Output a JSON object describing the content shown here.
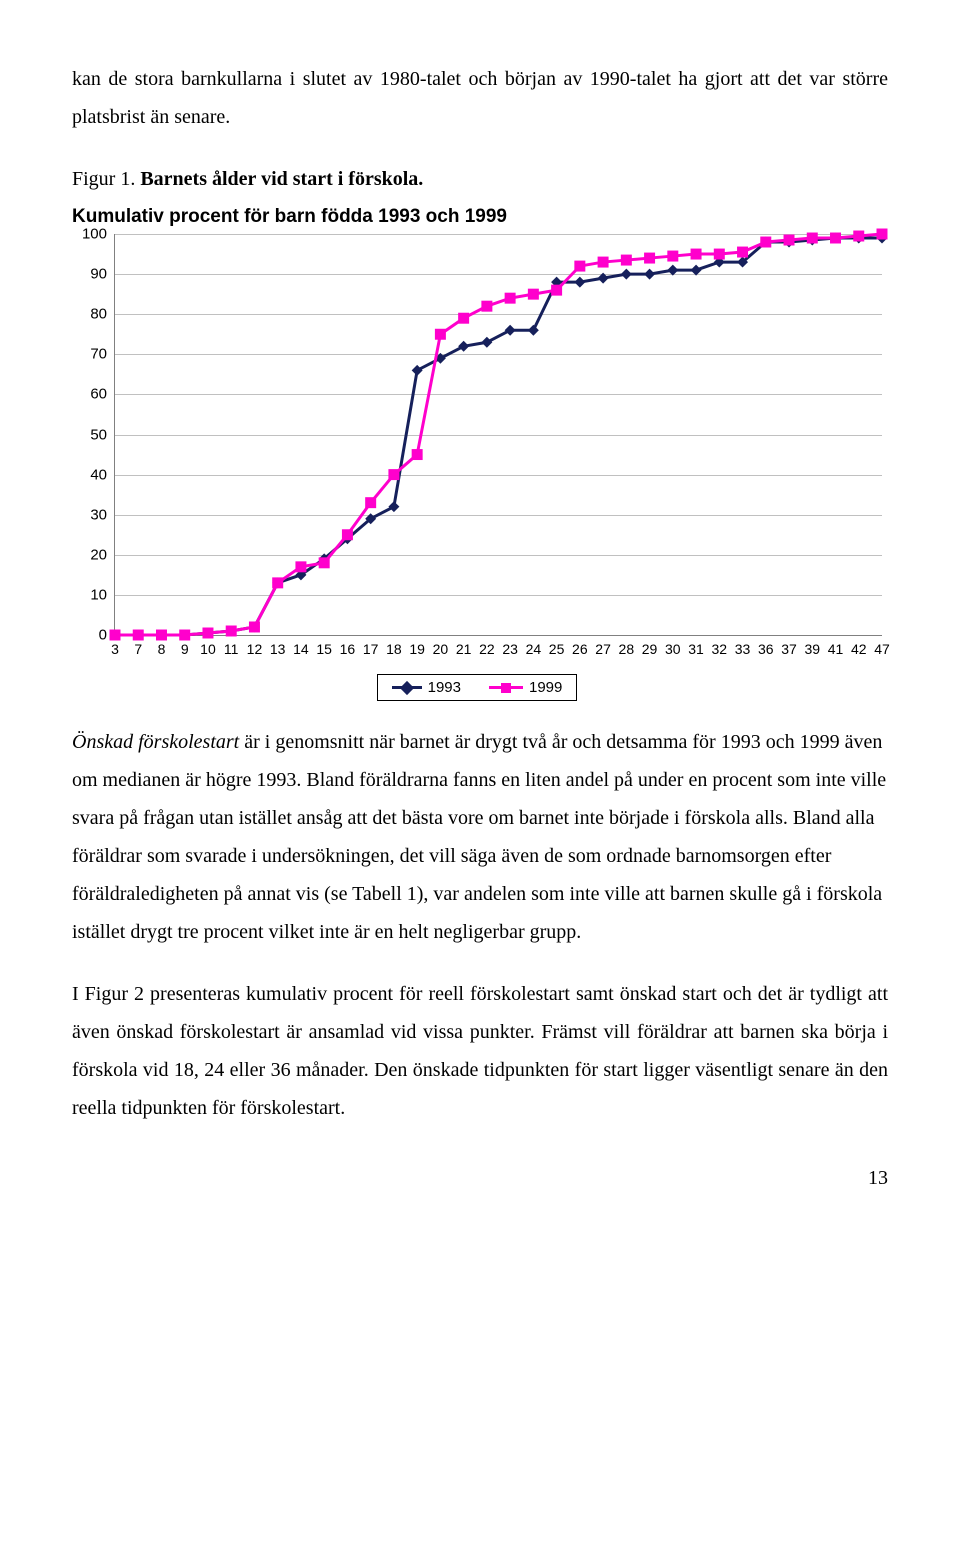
{
  "intro_text": "kan de stora barnkullarna i slutet av 1980-talet och början av 1990-talet ha gjort att det var större platsbrist än senare.",
  "figure_caption": {
    "label": "Figur 1. ",
    "text": "Barnets ålder vid start i förskola."
  },
  "chart": {
    "type": "line",
    "title": "Kumulativ procent för barn födda 1993 och 1999",
    "title_fontsize": 19,
    "label_fontsize": 15,
    "tick_fontsize": 14,
    "background_color": "#ffffff",
    "grid_color": "#c0c0c0",
    "axis_color": "#808080",
    "ylim": [
      0,
      100
    ],
    "ytick_step": 10,
    "x_categories": [
      "3",
      "7",
      "8",
      "9",
      "10",
      "11",
      "12",
      "13",
      "14",
      "15",
      "16",
      "17",
      "18",
      "19",
      "20",
      "21",
      "22",
      "23",
      "24",
      "25",
      "26",
      "27",
      "28",
      "29",
      "30",
      "31",
      "32",
      "33",
      "36",
      "37",
      "39",
      "41",
      "42",
      "47"
    ],
    "series": [
      {
        "name": "1993",
        "color": "#16205b",
        "marker": "diamond",
        "marker_size": 11,
        "line_width": 3,
        "values": [
          0,
          0,
          0,
          0,
          0.5,
          1,
          2,
          13,
          15,
          19,
          24,
          29,
          32,
          66,
          69,
          72,
          73,
          76,
          76,
          88,
          88,
          89,
          90,
          90,
          91,
          91,
          93,
          93,
          98,
          98,
          98.5,
          99,
          99,
          99
        ]
      },
      {
        "name": "1999",
        "color": "#ff00cc",
        "marker": "square",
        "marker_size": 11,
        "line_width": 3,
        "values": [
          0,
          0,
          0,
          0,
          0.5,
          1,
          2,
          13,
          17,
          18,
          25,
          33,
          40,
          45,
          75,
          79,
          82,
          84,
          85,
          86,
          92,
          93,
          93.5,
          94,
          94.5,
          95,
          95,
          95.5,
          98,
          98.5,
          99,
          99,
          99.5,
          100
        ]
      }
    ],
    "legend": {
      "border_color": "#000000",
      "items": [
        "1993",
        "1999"
      ]
    }
  },
  "para_onskad_lead": "Önskad förskolestart",
  "para_onskad": " är i genomsnitt när barnet är drygt två år och detsamma för 1993 och 1999 även om medianen är högre 1993. Bland föräldrarna fanns en liten andel på under en procent som inte ville svara på frågan utan istället ansåg att det bästa vore om barnet inte började i förskola alls. Bland alla föräldrar som svarade i undersökningen, det vill säga även de som ordnade barnomsorgen efter föräldraledigheten på annat vis (se Tabell 1), var andelen som inte ville att barnen skulle gå i förskola istället drygt tre procent vilket inte är en helt negligerbar grupp.",
  "para_figur2": "I Figur 2 presenteras kumulativ procent för reell förskolestart samt önskad start och det är tydligt att även önskad förskolestart är ansamlad vid vissa punkter. Främst vill föräldrar att barnen ska börja i förskola vid 18, 24 eller 36 månader. Den önskade tidpunkten för start ligger väsentligt senare än den reella tidpunkten för förskolestart.",
  "page_number": "13"
}
